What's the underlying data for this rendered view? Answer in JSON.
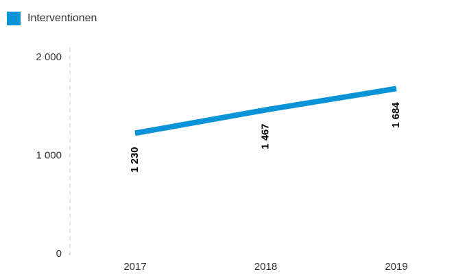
{
  "chart_data": {
    "type": "line",
    "x": [
      "2017",
      "2018",
      "2019"
    ],
    "series": [
      {
        "name": "Interventionen",
        "color": "#0a93d6",
        "values": [
          1230,
          1467,
          1684
        ],
        "value_labels": [
          "1 230",
          "1 467",
          "1 684"
        ]
      }
    ],
    "ylim": [
      0,
      2000
    ],
    "yticks": [
      0,
      {
        "value": 1000,
        "label": "1 000"
      },
      {
        "value": 2000,
        "label": "2 000"
      }
    ]
  }
}
